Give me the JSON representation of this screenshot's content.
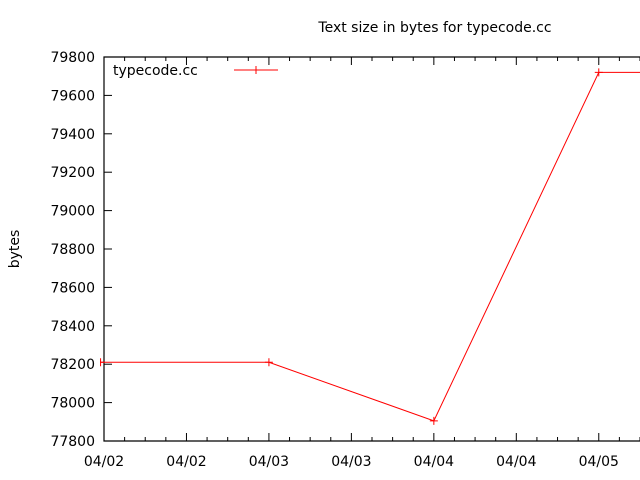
{
  "chart_data": {
    "type": "line",
    "title": "Text size in bytes for typecode.cc",
    "xlabel": "",
    "ylabel": "bytes",
    "xlim": [
      "04/02 00:00",
      "04/05 06:00"
    ],
    "ylim": [
      77800,
      79800
    ],
    "grid": false,
    "legend_position": "top-left",
    "x_tick_labels": [
      "04/02",
      "04/02",
      "04/03",
      "04/03",
      "04/04",
      "04/04",
      "04/05"
    ],
    "y_tick_labels": [
      "77800",
      "78000",
      "78200",
      "78400",
      "78600",
      "78800",
      "79000",
      "79200",
      "79400",
      "79600",
      "79800"
    ],
    "series": [
      {
        "name": "typecode.cc",
        "color": "#ff0000",
        "x": [
          "04/01 23:30",
          "04/03 00:00",
          "04/04 00:00",
          "04/05 00:00",
          "04/06 00:00"
        ],
        "y": [
          78210,
          78210,
          77905,
          79720,
          79720
        ]
      }
    ]
  }
}
